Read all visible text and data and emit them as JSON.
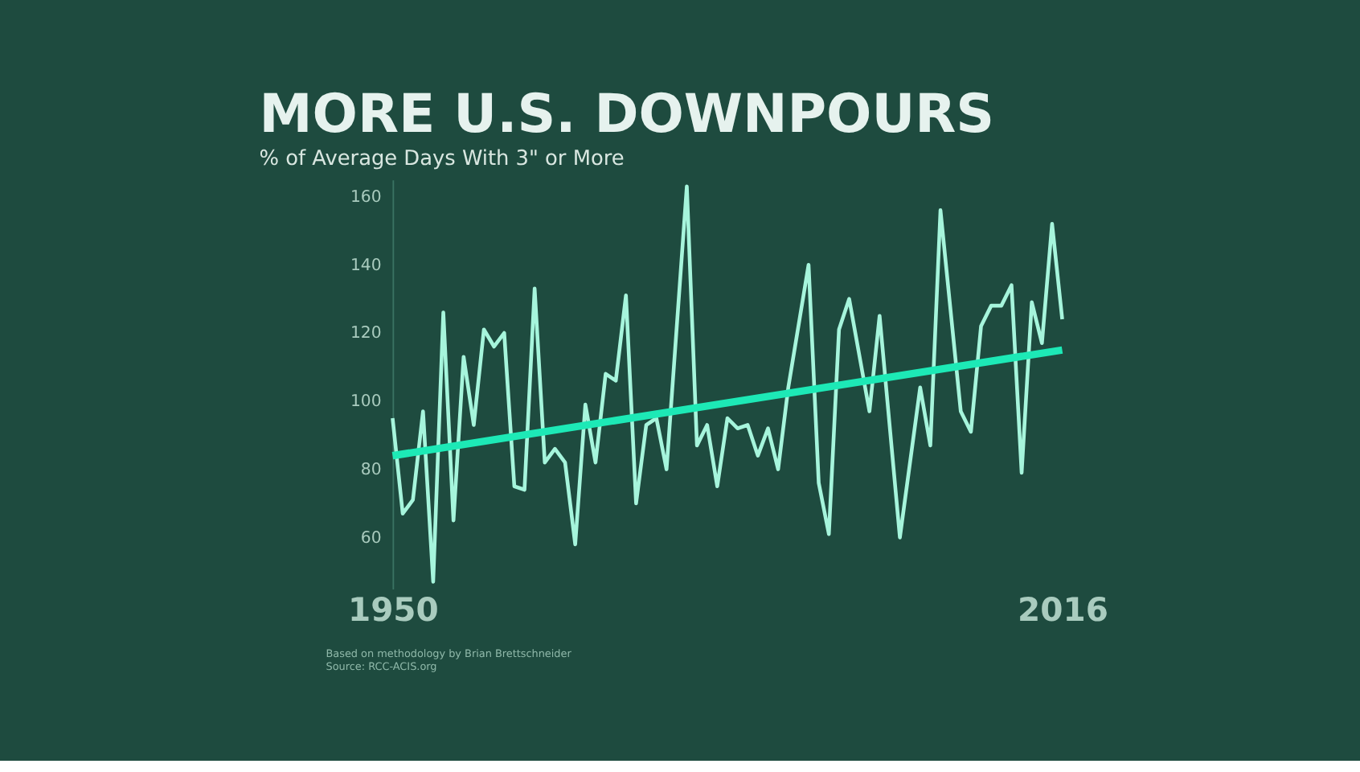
{
  "chart_data": {
    "type": "line",
    "title": "MORE U.S. DOWNPOURS",
    "subtitle": "% of Average Days With 3\" or More",
    "series": [
      {
        "color": "#a6f5dc",
        "x": [
          1950,
          1951,
          1952,
          1953,
          1954,
          1955,
          1956,
          1957,
          1958,
          1959,
          1960,
          1961,
          1962,
          1963,
          1964,
          1965,
          1966,
          1967,
          1968,
          1969,
          1970,
          1971,
          1972,
          1973,
          1974,
          1975,
          1976,
          1977,
          1979,
          1980,
          1981,
          1982,
          1983,
          1984,
          1985,
          1986,
          1987,
          1988,
          1989,
          1991,
          1992,
          1993,
          1994,
          1995,
          1997,
          1998,
          2000,
          2002,
          2003,
          2004,
          2006,
          2007,
          2008,
          2009,
          2010,
          2011,
          2012,
          2013,
          2014,
          2015,
          2016
        ],
        "values": [
          95,
          67,
          71,
          97,
          47,
          126,
          65,
          113,
          93,
          121,
          116,
          120,
          75,
          74,
          133,
          82,
          86,
          82,
          58,
          99,
          82,
          108,
          106,
          131,
          70,
          93,
          95,
          80,
          163,
          87,
          93,
          75,
          95,
          92,
          93,
          84,
          92,
          80,
          104,
          140,
          76,
          61,
          121,
          130,
          97,
          125,
          60,
          104,
          87,
          156,
          97,
          91,
          122,
          128,
          128,
          134,
          79,
          129,
          117,
          152,
          124
        ]
      },
      {
        "type": "line",
        "color": "#1de9b6",
        "x": [
          1950,
          2016
        ],
        "values": [
          84,
          115
        ]
      }
    ],
    "xlim": [
      1950,
      2016
    ],
    "xticks": [
      1950,
      2016
    ],
    "ylim": [
      45,
      165
    ],
    "yticks": [
      60,
      80,
      100,
      120,
      140,
      160
    ],
    "grid": false,
    "annotations": [
      "Based on methodology by Brian Brettschneider",
      "Source: RCC-ACIS.org"
    ]
  }
}
